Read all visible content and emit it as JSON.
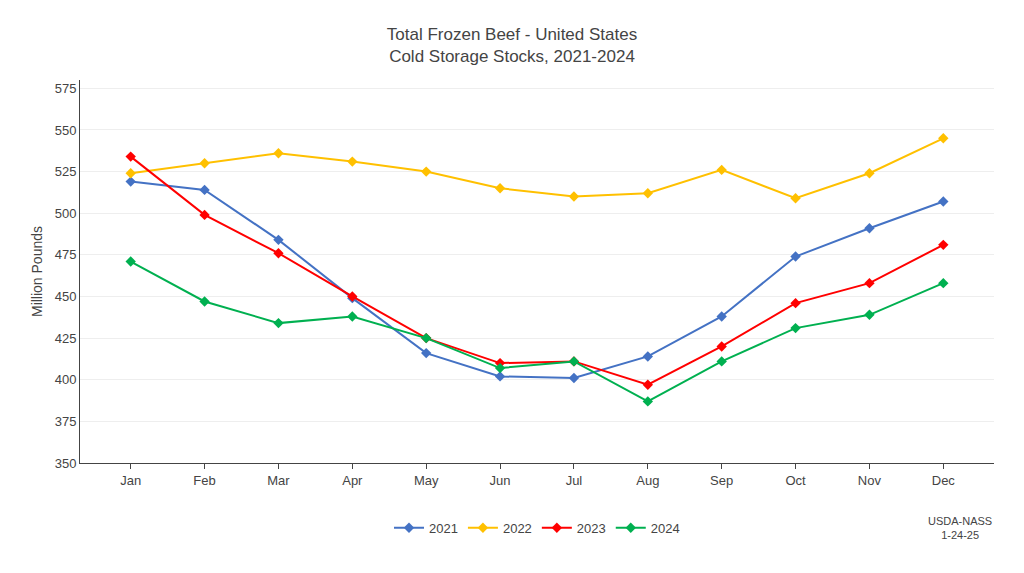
{
  "chart_data": {
    "type": "line",
    "title": "Total Frozen Beef - United States",
    "subtitle": "Cold Storage Stocks, 2021-2024",
    "y_label": "Million Pounds",
    "annotation": "USDA-NASS\n1-24-25",
    "categories": [
      "Jan",
      "Feb",
      "Mar",
      "Apr",
      "May",
      "Jun",
      "Jul",
      "Aug",
      "Sep",
      "Oct",
      "Nov",
      "Dec"
    ],
    "series": [
      {
        "name": "2021",
        "color": "#4472C4",
        "values": [
          519,
          514,
          484,
          449,
          416,
          402,
          401,
          414,
          438,
          474,
          491,
          507
        ]
      },
      {
        "name": "2022",
        "color": "#FFC000",
        "values": [
          524,
          530,
          536,
          531,
          525,
          515,
          510,
          512,
          526,
          509,
          524,
          545
        ]
      },
      {
        "name": "2023",
        "color": "#FF0000",
        "values": [
          534,
          499,
          476,
          450,
          425,
          410,
          411,
          397,
          420,
          446,
          458,
          481
        ]
      },
      {
        "name": "2024",
        "color": "#00B050",
        "values": [
          471,
          447,
          434,
          438,
          425,
          407,
          411,
          387,
          411,
          431,
          439,
          458
        ]
      }
    ],
    "marker": "diamond",
    "ylim": [
      350,
      580
    ],
    "yticks": [
      350,
      375,
      400,
      425,
      450,
      475,
      500,
      525,
      550,
      575
    ],
    "grid": true,
    "legend": "bottom"
  }
}
